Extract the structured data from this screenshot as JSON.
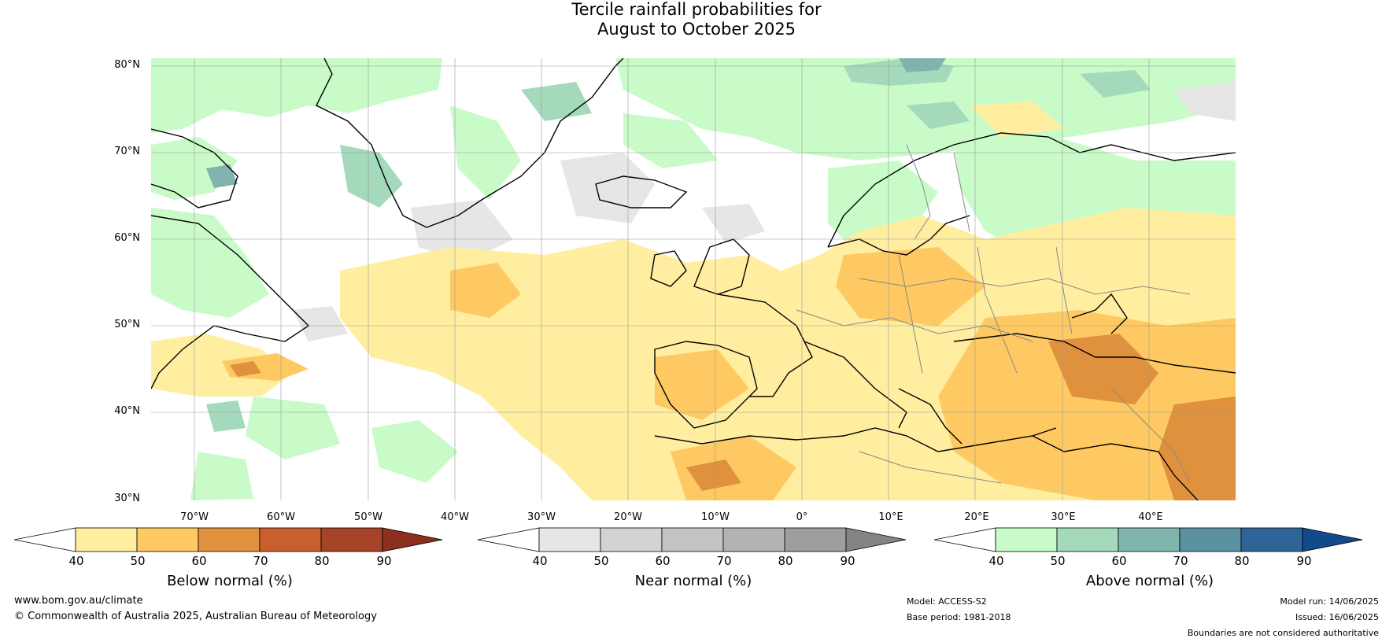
{
  "title": {
    "line1": "Tercile rainfall probabilities for",
    "line2": "August to October 2025"
  },
  "map": {
    "lat_labels": [
      "80°N",
      "70°N",
      "60°N",
      "50°N",
      "40°N",
      "30°N"
    ],
    "lon_labels": [
      "70°W",
      "60°W",
      "50°W",
      "40°W",
      "30°W",
      "20°W",
      "10°W",
      "0°",
      "10°E",
      "20°E",
      "30°E",
      "40°E"
    ],
    "lat_range": [
      30,
      81
    ],
    "lon_range": [
      -80,
      45
    ],
    "gridlines": true
  },
  "colorbars": [
    {
      "title": "Below normal (%)",
      "ticks": [
        "40",
        "50",
        "60",
        "70",
        "80",
        "90"
      ],
      "colors": [
        "#ffffff",
        "#ffeea0",
        "#fec962",
        "#e0913e",
        "#c85f2c",
        "#a54428",
        "#8e2f1e"
      ]
    },
    {
      "title": "Near normal (%)",
      "ticks": [
        "40",
        "50",
        "60",
        "70",
        "80",
        "90"
      ],
      "colors": [
        "#ffffff",
        "#e6e6e6",
        "#d3d3d3",
        "#c3c3c3",
        "#b3b3b3",
        "#9e9e9e",
        "#848484"
      ]
    },
    {
      "title": "Above normal (%)",
      "ticks": [
        "40",
        "50",
        "60",
        "70",
        "80",
        "90"
      ],
      "colors": [
        "#ffffff",
        "#c8fbc8",
        "#a4d9bb",
        "#7fb5ad",
        "#5a92a1",
        "#2f6496",
        "#124b8a"
      ]
    }
  ],
  "footer": {
    "website": "www.bom.gov.au/climate",
    "copyright": "© Commonwealth of Australia 2025, Australian Bureau of Meteorology",
    "model": "Model: ACCESS-S2",
    "base_period": "Base period: 1981-2018",
    "model_run": "Model run: 14/06/2025",
    "issued": "Issued: 16/06/2025",
    "disclaimer": "Boundaries are not considered authoritative"
  }
}
